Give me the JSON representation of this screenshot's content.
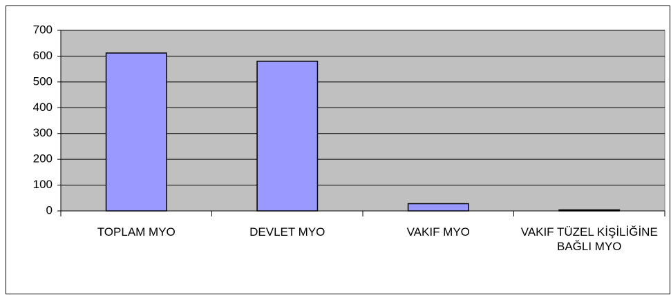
{
  "chart_data": {
    "type": "bar",
    "categories": [
      "TOPLAM MYO",
      "DEVLET MYO",
      "VAKIF MYO",
      "VAKIF TÜZEL KİŞİLİĞİNE BAĞLI MYO"
    ],
    "values": [
      612,
      580,
      28,
      4
    ],
    "color": "#9999ff",
    "ylim": [
      0,
      700
    ],
    "yticks": [
      0,
      100,
      200,
      300,
      400,
      500,
      600,
      700
    ],
    "grid": true
  }
}
